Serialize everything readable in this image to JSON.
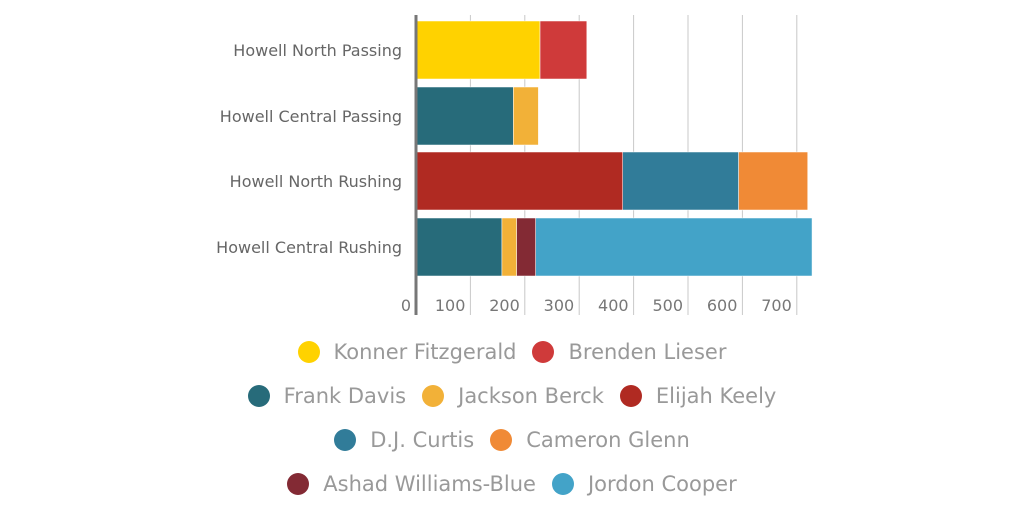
{
  "chart_data": {
    "type": "bar",
    "orientation": "horizontal",
    "stacked": true,
    "categories": [
      "Howell North Passing",
      "Howell Central Passing",
      "Howell North Rushing",
      "Howell Central Rushing"
    ],
    "series": [
      {
        "name": "Konner Fitzgerald",
        "color": "#FFD200",
        "values": [
          228,
          0,
          0,
          0
        ]
      },
      {
        "name": "Brenden Lieser",
        "color": "#CF3A3A",
        "values": [
          86,
          0,
          0,
          0
        ]
      },
      {
        "name": "Frank Davis",
        "color": "#276B7A",
        "values": [
          0,
          179,
          0,
          158
        ]
      },
      {
        "name": "Jackson Berck",
        "color": "#F2B138",
        "values": [
          0,
          46,
          0,
          27
        ]
      },
      {
        "name": "Elijah Keely",
        "color": "#B02A22",
        "values": [
          0,
          0,
          380,
          0
        ]
      },
      {
        "name": "D.J. Curtis",
        "color": "#317C99",
        "values": [
          0,
          0,
          213,
          0
        ]
      },
      {
        "name": "Cameron Glenn",
        "color": "#F08A36",
        "values": [
          0,
          0,
          127,
          0
        ]
      },
      {
        "name": "Ashad Williams-Blue",
        "color": "#832A34",
        "values": [
          0,
          0,
          0,
          35
        ]
      },
      {
        "name": "Jordon Cooper",
        "color": "#43A3C8",
        "values": [
          0,
          0,
          0,
          508
        ]
      }
    ],
    "xticks": [
      "0",
      "100",
      "200",
      "300",
      "400",
      "500",
      "600",
      "700"
    ],
    "xlim": [
      0,
      700
    ],
    "grid": true,
    "legend": "bottom"
  }
}
